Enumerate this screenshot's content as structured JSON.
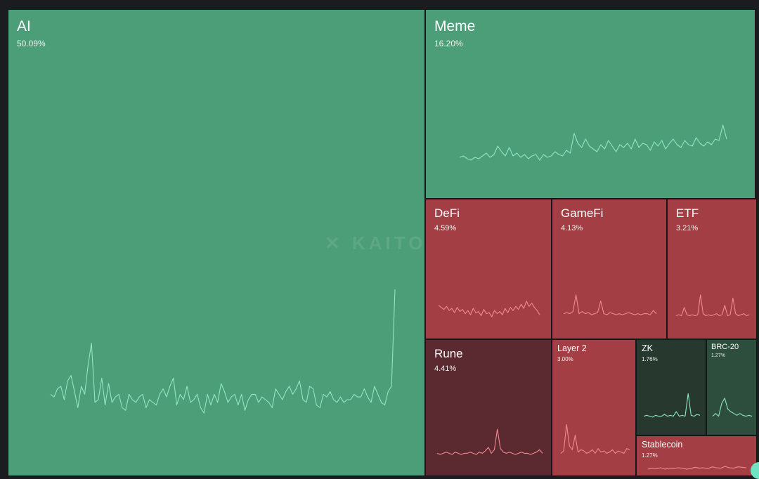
{
  "watermark": "✕ KAITO",
  "colors": {
    "up": "#4c9e78",
    "down": "#a33f44",
    "deep_down": "#5a2a30",
    "dark_up": "#27382f",
    "mid_up": "#2e4e3d",
    "spark_up": "#8ee6c2",
    "spark_down": "#f08a8e"
  },
  "chart_data": {
    "type": "treemap",
    "title": "",
    "value_unit": "%",
    "items": [
      {
        "name": "AI",
        "share": "50.09%",
        "value": 50.09,
        "color": "up",
        "level": "l1",
        "spark": [
          0.33,
          0.32,
          0.35,
          0.36,
          0.31,
          0.38,
          0.4,
          0.34,
          0.28,
          0.36,
          0.33,
          0.44,
          0.52,
          0.3,
          0.31,
          0.39,
          0.29,
          0.37,
          0.3,
          0.32,
          0.33,
          0.28,
          0.27,
          0.33,
          0.31,
          0.3,
          0.32,
          0.33,
          0.28,
          0.31,
          0.3,
          0.29,
          0.33,
          0.35,
          0.32,
          0.36,
          0.39,
          0.29,
          0.33,
          0.31,
          0.36,
          0.3,
          0.31,
          0.33,
          0.28,
          0.26,
          0.33,
          0.29,
          0.33,
          0.3,
          0.37,
          0.34,
          0.3,
          0.32,
          0.33,
          0.29,
          0.33,
          0.27,
          0.31,
          0.33,
          0.33,
          0.3,
          0.32,
          0.31,
          0.3,
          0.28,
          0.35,
          0.33,
          0.31,
          0.34,
          0.36,
          0.33,
          0.35,
          0.38,
          0.31,
          0.3,
          0.36,
          0.35,
          0.29,
          0.28,
          0.33,
          0.32,
          0.34,
          0.31,
          0.3,
          0.32,
          0.3,
          0.31,
          0.31,
          0.33,
          0.32,
          0.32,
          0.35,
          0.32,
          0.3,
          0.36,
          0.33,
          0.3,
          0.29,
          0.34,
          0.36,
          0.72
        ]
      },
      {
        "name": "Meme",
        "share": "16.20%",
        "value": 16.2,
        "color": "up",
        "level": "l1",
        "spark": [
          0.35,
          0.36,
          0.34,
          0.33,
          0.35,
          0.34,
          0.36,
          0.38,
          0.35,
          0.37,
          0.43,
          0.39,
          0.36,
          0.42,
          0.36,
          0.38,
          0.35,
          0.37,
          0.34,
          0.36,
          0.37,
          0.33,
          0.37,
          0.35,
          0.36,
          0.39,
          0.37,
          0.36,
          0.4,
          0.38,
          0.52,
          0.45,
          0.42,
          0.48,
          0.43,
          0.41,
          0.39,
          0.44,
          0.41,
          0.47,
          0.43,
          0.39,
          0.44,
          0.42,
          0.45,
          0.41,
          0.48,
          0.42,
          0.45,
          0.44,
          0.4,
          0.46,
          0.43,
          0.47,
          0.41,
          0.45,
          0.48,
          0.44,
          0.42,
          0.47,
          0.44,
          0.43,
          0.49,
          0.45,
          0.43,
          0.46,
          0.44,
          0.48,
          0.47,
          0.58,
          0.48
        ]
      },
      {
        "name": "DeFi",
        "share": "4.59%",
        "value": 4.59,
        "color": "down",
        "level": "l2",
        "spark": [
          0.38,
          0.36,
          0.34,
          0.37,
          0.33,
          0.35,
          0.31,
          0.36,
          0.32,
          0.34,
          0.3,
          0.33,
          0.29,
          0.35,
          0.31,
          0.32,
          0.28,
          0.34,
          0.3,
          0.31,
          0.27,
          0.33,
          0.3,
          0.32,
          0.29,
          0.35,
          0.31,
          0.36,
          0.33,
          0.37,
          0.34,
          0.39,
          0.35,
          0.42,
          0.37,
          0.4,
          0.36,
          0.33,
          0.29
        ]
      },
      {
        "name": "GameFi",
        "share": "4.13%",
        "value": 4.13,
        "color": "down",
        "level": "l2",
        "spark": [
          0.3,
          0.31,
          0.3,
          0.32,
          0.48,
          0.3,
          0.32,
          0.3,
          0.31,
          0.29,
          0.3,
          0.31,
          0.42,
          0.3,
          0.29,
          0.31,
          0.3,
          0.29,
          0.3,
          0.29,
          0.3,
          0.31,
          0.3,
          0.29,
          0.3,
          0.29,
          0.3,
          0.3,
          0.29,
          0.33,
          0.3
        ]
      },
      {
        "name": "ETF",
        "share": "3.21%",
        "value": 3.21,
        "color": "down",
        "level": "l2",
        "spark": [
          0.28,
          0.29,
          0.28,
          0.36,
          0.29,
          0.28,
          0.29,
          0.28,
          0.29,
          0.48,
          0.3,
          0.28,
          0.29,
          0.28,
          0.29,
          0.3,
          0.28,
          0.29,
          0.38,
          0.28,
          0.29,
          0.45,
          0.3,
          0.28,
          0.29,
          0.3,
          0.28,
          0.29
        ]
      },
      {
        "name": "Rune",
        "share": "4.41%",
        "value": 4.41,
        "color": "deep_down",
        "level": "l2",
        "spark": [
          0.3,
          0.29,
          0.3,
          0.31,
          0.3,
          0.29,
          0.31,
          0.3,
          0.29,
          0.3,
          0.3,
          0.31,
          0.3,
          0.29,
          0.31,
          0.3,
          0.32,
          0.35,
          0.3,
          0.33,
          0.5,
          0.34,
          0.31,
          0.3,
          0.31,
          0.3,
          0.29,
          0.3,
          0.31,
          0.3,
          0.3,
          0.29,
          0.3,
          0.31,
          0.33,
          0.3
        ]
      },
      {
        "name": "Layer 2",
        "share": "3.00%",
        "value": 3.0,
        "color": "down",
        "level": "l3",
        "spark": [
          0.3,
          0.32,
          0.54,
          0.36,
          0.33,
          0.45,
          0.31,
          0.33,
          0.32,
          0.3,
          0.31,
          0.33,
          0.3,
          0.34,
          0.31,
          0.32,
          0.3,
          0.31,
          0.33,
          0.3,
          0.32,
          0.31,
          0.3,
          0.34,
          0.33
        ]
      },
      {
        "name": "ZK",
        "share": "1.76%",
        "value": 1.76,
        "color": "dark_up",
        "level": "l3",
        "spark": [
          0.3,
          0.31,
          0.3,
          0.29,
          0.31,
          0.3,
          0.3,
          0.32,
          0.3,
          0.31,
          0.3,
          0.35,
          0.3,
          0.31,
          0.3,
          0.55,
          0.31,
          0.3,
          0.32,
          0.31
        ]
      },
      {
        "name": "BRC-20",
        "share": "1.27%",
        "value": 1.27,
        "color": "mid_up",
        "level": "l4",
        "spark": [
          0.3,
          0.33,
          0.3,
          0.44,
          0.5,
          0.38,
          0.35,
          0.33,
          0.31,
          0.33,
          0.31,
          0.3,
          0.31,
          0.3
        ]
      },
      {
        "name": "Stablecoin",
        "share": "1.27%",
        "value": 1.27,
        "color": "down",
        "level": "l3",
        "spark": [
          0.3,
          0.32,
          0.31,
          0.33,
          0.3,
          0.32,
          0.31,
          0.33,
          0.32,
          0.3,
          0.31,
          0.34,
          0.32,
          0.33,
          0.31,
          0.35,
          0.33,
          0.32,
          0.36,
          0.33,
          0.32,
          0.35,
          0.34,
          0.33
        ]
      }
    ]
  }
}
